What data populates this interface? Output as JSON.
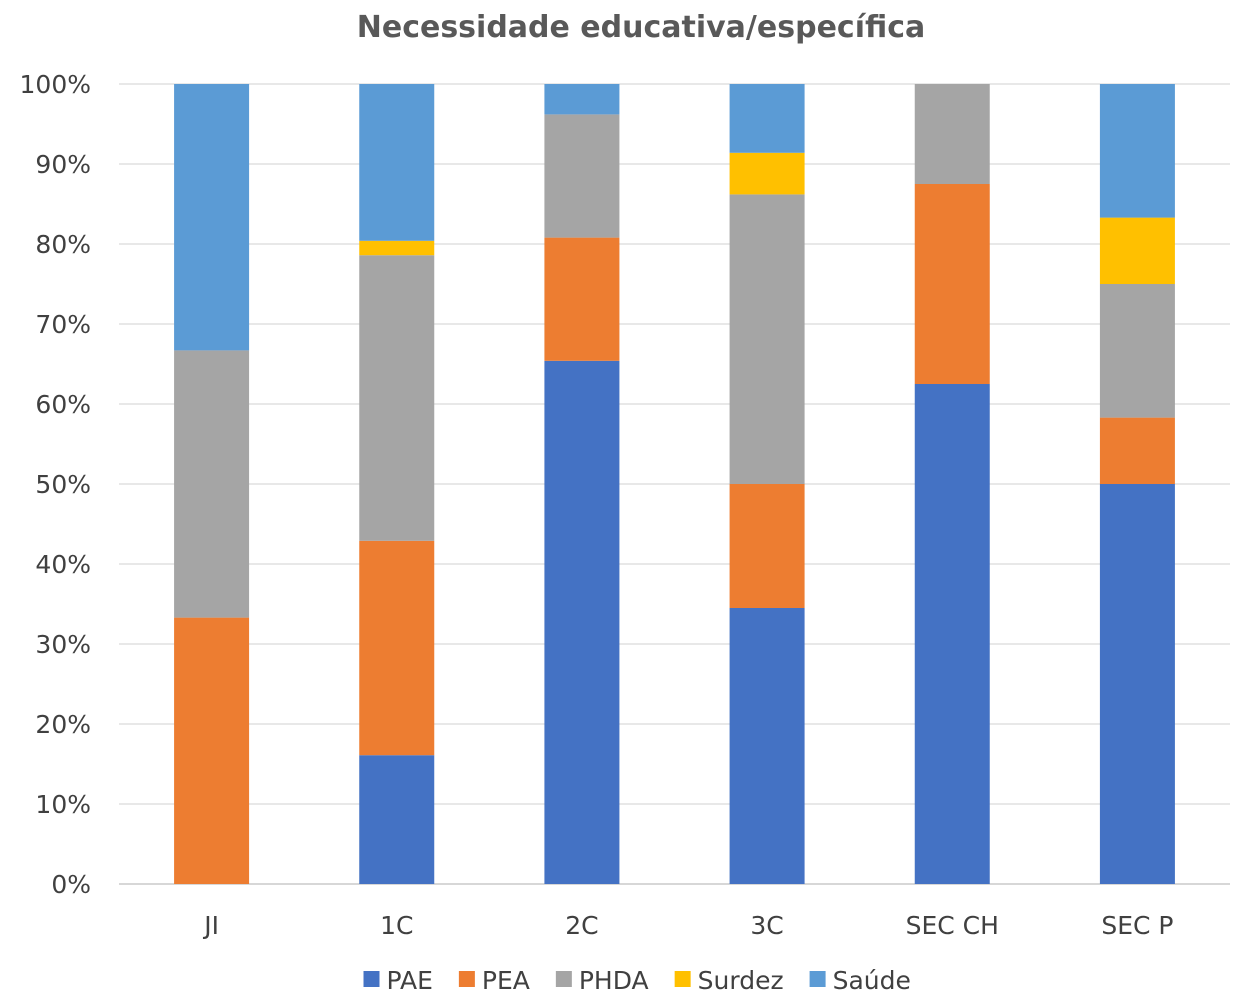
{
  "chart_data": {
    "type": "bar",
    "stacked": "percent",
    "title": "Necessidade educativa/específica",
    "xlabel": "",
    "ylabel": "",
    "ylim": [
      0,
      100
    ],
    "yticks": [
      "0%",
      "10%",
      "20%",
      "30%",
      "40%",
      "50%",
      "60%",
      "70%",
      "80%",
      "90%",
      "100%"
    ],
    "categories": [
      "JI",
      "1C",
      "2C",
      "3C",
      "SEC CH",
      "SEC P"
    ],
    "series": [
      {
        "name": "PAE",
        "color": "#4472C4",
        "values": [
          0,
          16.1,
          65.4,
          34.5,
          62.5,
          50.0
        ]
      },
      {
        "name": "PEA",
        "color": "#ED7D31",
        "values": [
          33.3,
          26.8,
          15.4,
          15.5,
          25.0,
          8.3
        ]
      },
      {
        "name": "PHDA",
        "color": "#A5A5A5",
        "values": [
          33.4,
          35.7,
          15.4,
          36.2,
          12.5,
          16.7
        ]
      },
      {
        "name": "Surdez",
        "color": "#FFC000",
        "values": [
          0,
          1.8,
          0,
          5.2,
          0,
          8.3
        ]
      },
      {
        "name": "Saúde",
        "color": "#5B9BD5",
        "values": [
          33.3,
          19.6,
          3.8,
          8.6,
          0,
          16.7
        ]
      }
    ],
    "grid": true,
    "legend_position": "bottom"
  }
}
